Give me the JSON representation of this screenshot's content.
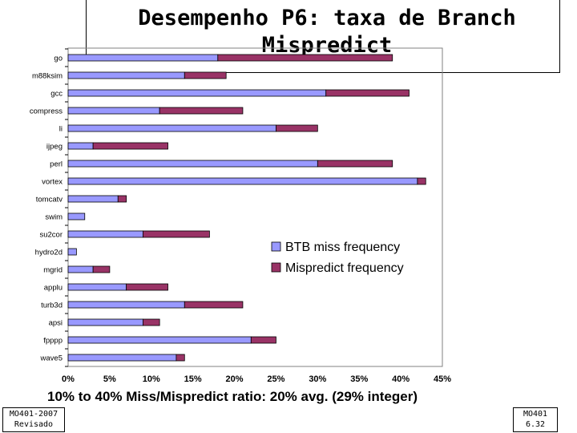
{
  "title": "Desempenho P6: taxa de Branch Mispredict",
  "subtitle": "10% to 40% Miss/Mispredict ratio: 20% avg. (29% integer)",
  "footer_left": {
    "line1": "MO401-2007",
    "line2": "Revisado"
  },
  "footer_right": {
    "line1": "MO401",
    "line2": "6.32"
  },
  "chart_data": {
    "type": "bar",
    "orientation": "horizontal",
    "stacked": true,
    "categories": [
      "go",
      "m88ksim",
      "gcc",
      "compress",
      "li",
      "ijpeg",
      "perl",
      "vortex",
      "tomcatv",
      "swim",
      "su2cor",
      "hydro2d",
      "mgrid",
      "applu",
      "turb3d",
      "apsi",
      "fpppp",
      "wave5"
    ],
    "series": [
      {
        "name": "BTB miss frequency",
        "color": "#9999ff",
        "values": [
          18.0,
          14.0,
          31.0,
          11.0,
          25.0,
          3.0,
          30.0,
          42.0,
          6.0,
          2.0,
          9.0,
          1.0,
          3.0,
          7.0,
          14.0,
          9.0,
          22.0,
          13.0
        ]
      },
      {
        "name": "Mispredict frequency",
        "color": "#993366",
        "values": [
          21.0,
          5.0,
          10.0,
          10.0,
          5.0,
          9.0,
          9.0,
          1.0,
          1.0,
          0.0,
          8.0,
          0.0,
          2.0,
          5.0,
          7.0,
          2.0,
          3.0,
          1.0
        ]
      }
    ],
    "x_ticks": [
      "0%",
      "5%",
      "10%",
      "15%",
      "20%",
      "25%",
      "30%",
      "35%",
      "40%",
      "45%"
    ],
    "xlim": [
      0,
      45
    ],
    "legend_position": "right-middle"
  }
}
